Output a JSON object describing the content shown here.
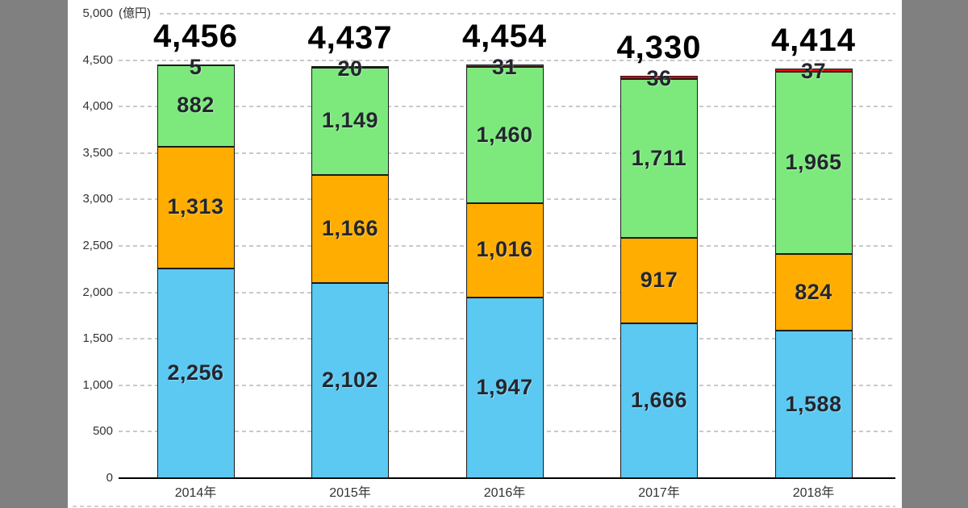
{
  "background_color": "#808080",
  "panel_color": "#ffffff",
  "chart_data": {
    "type": "bar",
    "stacked": true,
    "title": "",
    "xlabel": "",
    "ylabel": "(億円)",
    "ylim": [
      0,
      5000
    ],
    "ytick_step": 500,
    "ytick_labels": [
      "0",
      "500",
      "1,000",
      "1,500",
      "2,000",
      "2,500",
      "3,000",
      "3,500",
      "4,000",
      "4,500",
      "5,000"
    ],
    "grid": "horizontal-dashed",
    "legend": "none",
    "categories": [
      "2014年",
      "2015年",
      "2016年",
      "2017年",
      "2018年"
    ],
    "series": [
      {
        "name": "segment-bottom-blue",
        "color": "#5BC9F2",
        "values": [
          2256,
          2102,
          1947,
          1666,
          1588
        ],
        "labels": [
          "2,256",
          "2,102",
          "1,947",
          "1,666",
          "1,588"
        ]
      },
      {
        "name": "segment-middle-orange",
        "color": "#FFAD00",
        "values": [
          1313,
          1166,
          1016,
          917,
          824
        ],
        "labels": [
          "1,313",
          "1,166",
          "1,016",
          "917",
          "824"
        ]
      },
      {
        "name": "segment-upper-green",
        "color": "#7DE97D",
        "values": [
          882,
          1149,
          1460,
          1711,
          1965
        ],
        "labels": [
          "882",
          "1,149",
          "1,460",
          "1,711",
          "1,965"
        ]
      },
      {
        "name": "segment-top-red",
        "color": "#FF0000",
        "values": [
          5,
          20,
          31,
          36,
          37
        ],
        "labels": [
          "5",
          "20",
          "31",
          "36",
          "37"
        ]
      }
    ],
    "totals": {
      "values": [
        4456,
        4437,
        4454,
        4330,
        4414
      ],
      "labels": [
        "4,456",
        "4,437",
        "4,454",
        "4,330",
        "4,414"
      ]
    },
    "colors": {
      "grid": "#c9c9c9",
      "axis": "#000000",
      "bar_border": "#1a1a1a",
      "segment_label": "#24262e",
      "total_label": "#000000",
      "tick_label": "#333333"
    }
  }
}
